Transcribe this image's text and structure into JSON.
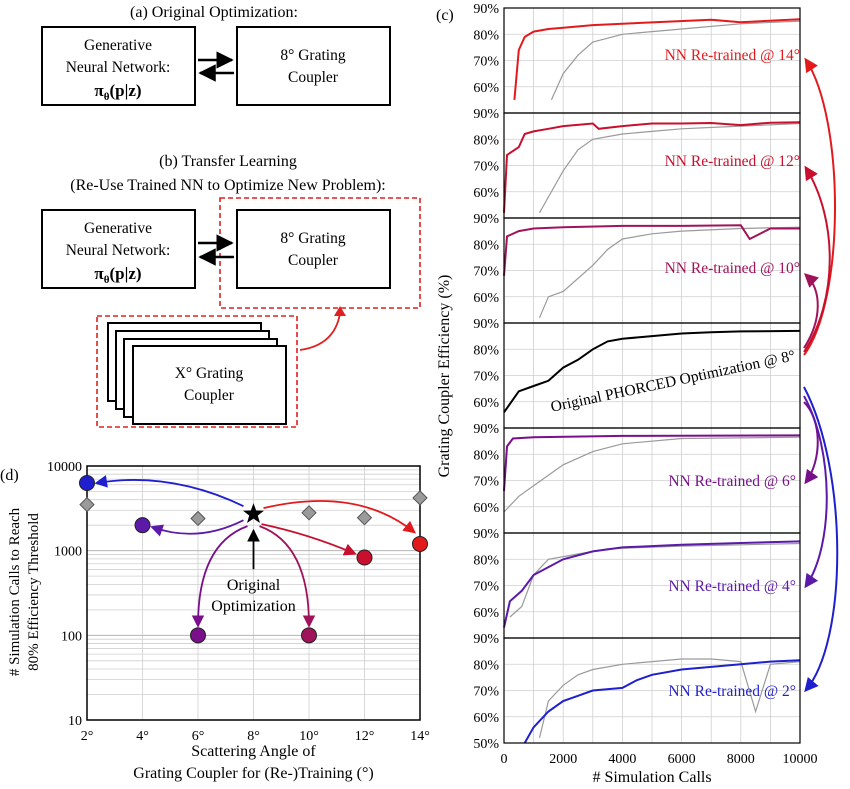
{
  "panel_a": {
    "title": "(a) Original Optimization:",
    "gnn_line1": "Generative",
    "gnn_line2": "Neural Network:",
    "gnn_formula": "π",
    "gnn_sub": "θ",
    "gnn_arg": "(p|z)",
    "coupler_line1": "8° Grating",
    "coupler_line2": "Coupler"
  },
  "panel_b": {
    "title_line1": "(b) Transfer Learning",
    "title_line2": "(Re-Use Trained NN to Optimize New Problem):",
    "gnn_line1": "Generative",
    "gnn_line2": "Neural Network:",
    "gnn_formula": "π",
    "gnn_sub": "θ",
    "gnn_arg": "(p|z)",
    "coupler_line1": "8° Grating",
    "coupler_line2": "Coupler",
    "new_line1": "X° Grating",
    "new_line2": "Coupler"
  },
  "colors": {
    "red": "#e31a1c",
    "crimson": "#c8102e",
    "magenta": "#a0125a",
    "purple": "#7a0f8c",
    "violet": "#5b1aa8",
    "blue": "#1f1fcf",
    "gray": "#9a9a9a",
    "grid": "#cfcfcf",
    "dashed": "#e02020"
  },
  "chart_data": [
    {
      "id": "d",
      "type": "scatter",
      "panel_label": "(d)",
      "xlabel_line1": "Scattering Angle of",
      "xlabel_line2": "Grating Coupler for (Re-)Training (°)",
      "ylabel_line1": "# Simulation Calls to Reach",
      "ylabel_line2": "80% Efficiency Threshold",
      "x_ticks": [
        "2°",
        "4°",
        "6°",
        "8°",
        "10°",
        "12°",
        "14°"
      ],
      "y_scale": "log",
      "ylim": [
        10,
        10000
      ],
      "y_ticks": [
        "10",
        "100",
        "1000",
        "10000"
      ],
      "grid": true,
      "annotation_line1": "Original",
      "annotation_line2": "Optimization",
      "series": [
        {
          "marker": "diamond",
          "color": "#9a9a9a",
          "points": [
            [
              2,
              3500
            ],
            [
              6,
              2400
            ],
            [
              10,
              2800
            ],
            [
              12,
              2450
            ],
            [
              14,
              4200
            ]
          ]
        },
        {
          "marker": "circle",
          "points": [
            {
              "x": 2,
              "y": 6300,
              "color": "#1f1fcf"
            },
            {
              "x": 4,
              "y": 2000,
              "color": "#5b1aa8"
            },
            {
              "x": 6,
              "y": 100,
              "color": "#7a0f8c"
            },
            {
              "x": 10,
              "y": 100,
              "color": "#a0125a"
            },
            {
              "x": 12,
              "y": 830,
              "color": "#c8102e"
            },
            {
              "x": 14,
              "y": 1200,
              "color": "#e31a1c"
            }
          ]
        },
        {
          "marker": "star",
          "color": "#000000",
          "points": [
            [
              8,
              2700
            ]
          ]
        }
      ]
    },
    {
      "id": "c",
      "type": "line",
      "panel_label": "(c)",
      "xlabel": "# Simulation Calls",
      "ylabel": "Grating Coupler Efficiency (%)",
      "xlim": [
        0,
        10000
      ],
      "x_ticks": [
        "0",
        "2000",
        "4000",
        "6000",
        "8000",
        "10000"
      ],
      "grid": true,
      "subplots": [
        {
          "label": "NN Re-trained @ 14°",
          "color": "#e31a1c",
          "ylim": [
            50,
            90
          ],
          "y_ticks": [
            "60%",
            "70%",
            "80%",
            "90%"
          ],
          "main": [
            [
              350,
              55
            ],
            [
              500,
              74
            ],
            [
              700,
              79
            ],
            [
              1000,
              81
            ],
            [
              1500,
              82
            ],
            [
              2000,
              82.5
            ],
            [
              3000,
              83.5
            ],
            [
              5000,
              84.5
            ],
            [
              7000,
              85.5
            ],
            [
              8000,
              84.6
            ],
            [
              10000,
              85.7
            ]
          ],
          "ref": [
            [
              1600,
              55
            ],
            [
              2000,
              65
            ],
            [
              2500,
              72
            ],
            [
              3000,
              77
            ],
            [
              4000,
              80
            ],
            [
              5000,
              81
            ],
            [
              7000,
              83
            ],
            [
              8000,
              84
            ],
            [
              10000,
              85
            ]
          ]
        },
        {
          "label": "NN Re-trained @ 12°",
          "color": "#c8102e",
          "ylim": [
            50,
            90
          ],
          "y_ticks": [
            "60%",
            "70%",
            "80%",
            "90%"
          ],
          "main": [
            [
              0,
              52
            ],
            [
              100,
              74
            ],
            [
              500,
              77
            ],
            [
              700,
              82
            ],
            [
              1000,
              83
            ],
            [
              1500,
              84
            ],
            [
              2000,
              85
            ],
            [
              3000,
              86
            ],
            [
              3200,
              84
            ],
            [
              4000,
              85
            ],
            [
              5000,
              86
            ],
            [
              6000,
              86
            ],
            [
              7000,
              86.2
            ],
            [
              8000,
              85.4
            ],
            [
              9000,
              86.3
            ],
            [
              10000,
              86.5
            ]
          ],
          "ref": [
            [
              1200,
              52
            ],
            [
              1500,
              58
            ],
            [
              2000,
              68
            ],
            [
              2500,
              76
            ],
            [
              3000,
              80
            ],
            [
              4000,
              82
            ],
            [
              5000,
              83
            ],
            [
              6000,
              84
            ],
            [
              8000,
              85
            ],
            [
              10000,
              86
            ]
          ]
        },
        {
          "label": "NN Re-trained @ 10°",
          "color": "#a0125a",
          "ylim": [
            50,
            90
          ],
          "y_ticks": [
            "60%",
            "70%",
            "80%",
            "90%"
          ],
          "main": [
            [
              0,
              68
            ],
            [
              100,
              83
            ],
            [
              500,
              85
            ],
            [
              1000,
              86
            ],
            [
              2000,
              86.5
            ],
            [
              4000,
              87
            ],
            [
              6000,
              87
            ],
            [
              8000,
              87.2
            ],
            [
              8300,
              82
            ],
            [
              9000,
              86
            ],
            [
              10000,
              86
            ]
          ],
          "ref": [
            [
              1200,
              52
            ],
            [
              1500,
              60
            ],
            [
              2000,
              62
            ],
            [
              3000,
              72
            ],
            [
              3500,
              78
            ],
            [
              4000,
              82
            ],
            [
              5000,
              84
            ],
            [
              6000,
              85
            ],
            [
              8000,
              86
            ],
            [
              10000,
              86.5
            ]
          ]
        },
        {
          "label": "Original PHORCED Optimization @ 8°",
          "color": "#000000",
          "ylim": [
            50,
            90
          ],
          "y_ticks": [
            "60%",
            "70%",
            "80%",
            "90%"
          ],
          "main": [
            [
              0,
              56
            ],
            [
              500,
              64
            ],
            [
              1000,
              66
            ],
            [
              1500,
              68
            ],
            [
              2000,
              73
            ],
            [
              2500,
              76
            ],
            [
              3000,
              80
            ],
            [
              3500,
              83
            ],
            [
              4000,
              84
            ],
            [
              5000,
              85
            ],
            [
              6000,
              86
            ],
            [
              7000,
              86.5
            ],
            [
              8000,
              86.8
            ],
            [
              10000,
              87
            ]
          ],
          "ref": []
        },
        {
          "label": "NN Re-trained @ 6°",
          "color": "#7a0f8c",
          "ylim": [
            50,
            90
          ],
          "y_ticks": [
            "60%",
            "70%",
            "80%",
            "90%"
          ],
          "main": [
            [
              0,
              66
            ],
            [
              100,
              83
            ],
            [
              300,
              86
            ],
            [
              1000,
              86.5
            ],
            [
              4000,
              87
            ],
            [
              10000,
              87.2
            ]
          ],
          "ref": [
            [
              0,
              58
            ],
            [
              500,
              64
            ],
            [
              1000,
              68
            ],
            [
              2000,
              76
            ],
            [
              3000,
              81
            ],
            [
              4000,
              84
            ],
            [
              6000,
              86
            ],
            [
              10000,
              86.5
            ]
          ]
        },
        {
          "label": "NN Re-trained @ 4°",
          "color": "#5b1aa8",
          "ylim": [
            50,
            90
          ],
          "y_ticks": [
            "60%",
            "70%",
            "80%",
            "90%"
          ],
          "main": [
            [
              0,
              54
            ],
            [
              200,
              64
            ],
            [
              600,
              68
            ],
            [
              1000,
              74
            ],
            [
              2000,
              80
            ],
            [
              3000,
              83
            ],
            [
              4000,
              84.5
            ],
            [
              6000,
              85.5
            ],
            [
              8000,
              86.2
            ],
            [
              10000,
              86.8
            ]
          ],
          "ref": [
            [
              200,
              58
            ],
            [
              600,
              62
            ],
            [
              1000,
              74
            ],
            [
              1500,
              80
            ],
            [
              2500,
              82
            ],
            [
              3500,
              84
            ],
            [
              6000,
              85
            ],
            [
              10000,
              86
            ]
          ]
        },
        {
          "label": "NN Re-trained @ 2°",
          "color": "#1f1fcf",
          "ylim": [
            50,
            90
          ],
          "y_ticks": [
            "50%",
            "60%",
            "70%",
            "80%",
            "90%"
          ],
          "main": [
            [
              700,
              50
            ],
            [
              1000,
              56
            ],
            [
              1500,
              62
            ],
            [
              2000,
              66
            ],
            [
              2500,
              68
            ],
            [
              3000,
              70
            ],
            [
              4000,
              71
            ],
            [
              4500,
              74
            ],
            [
              5000,
              76
            ],
            [
              6000,
              78
            ],
            [
              7000,
              79
            ],
            [
              8000,
              80
            ],
            [
              9000,
              81
            ],
            [
              10000,
              81.5
            ]
          ],
          "ref": [
            [
              1200,
              52
            ],
            [
              1500,
              66
            ],
            [
              2000,
              72
            ],
            [
              2500,
              76
            ],
            [
              3000,
              78
            ],
            [
              4000,
              80
            ],
            [
              5000,
              81
            ],
            [
              6000,
              82
            ],
            [
              7000,
              82
            ],
            [
              8000,
              81
            ],
            [
              8500,
              62
            ],
            [
              9000,
              80
            ],
            [
              10000,
              81
            ]
          ]
        }
      ]
    }
  ]
}
